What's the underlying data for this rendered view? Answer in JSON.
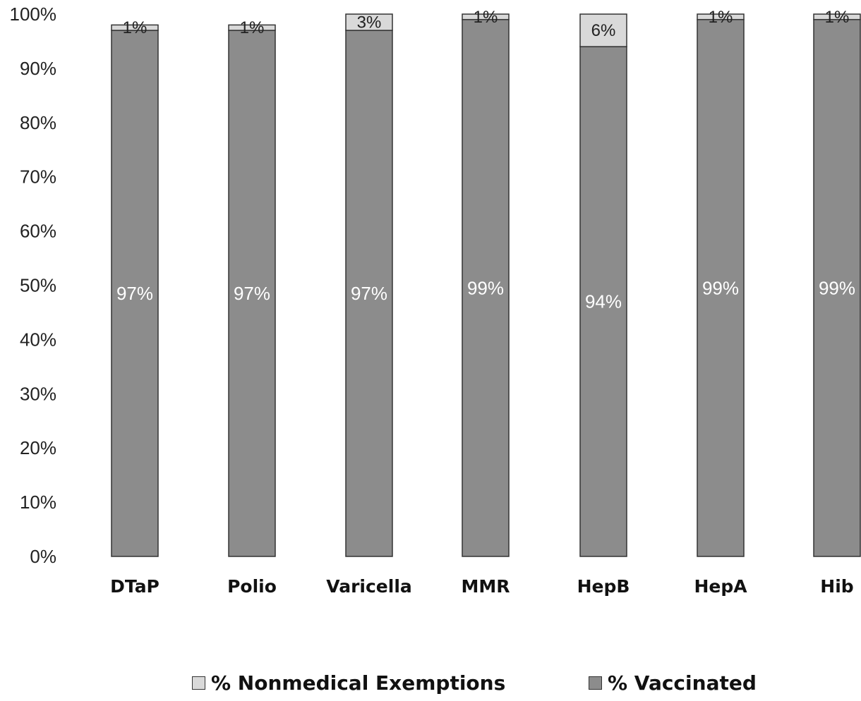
{
  "chart_data": {
    "type": "bar",
    "stacked": true,
    "categories": [
      "DTaP",
      "Polio",
      "Varicella",
      "MMR",
      "HepB",
      "HepA",
      "Hib"
    ],
    "series": [
      {
        "name": "% Vaccinated",
        "values": [
          97,
          97,
          97,
          99,
          94,
          99,
          99
        ],
        "labels": [
          "97%",
          "97%",
          "97%",
          "99%",
          "94%",
          "99%",
          "99%"
        ],
        "color": "#8c8c8c"
      },
      {
        "name": "% Nonmedical Exemptions",
        "values": [
          1,
          1,
          3,
          1,
          6,
          1,
          1
        ],
        "labels": [
          "1%",
          "1%",
          "3%",
          "1%",
          "6%",
          "1%",
          "1%"
        ],
        "color": "#d9d9d9"
      }
    ],
    "ylim": [
      0,
      100
    ],
    "yticks": [
      "0%",
      "10%",
      "20%",
      "30%",
      "40%",
      "50%",
      "60%",
      "70%",
      "80%",
      "90%",
      "100%"
    ],
    "xlabel": "",
    "ylabel": "",
    "title": "",
    "grid": false,
    "legend_position": "bottom"
  },
  "legend": {
    "nonmedical_label": "% Nonmedical Exemptions",
    "vaccinated_label": "% Vaccinated"
  }
}
